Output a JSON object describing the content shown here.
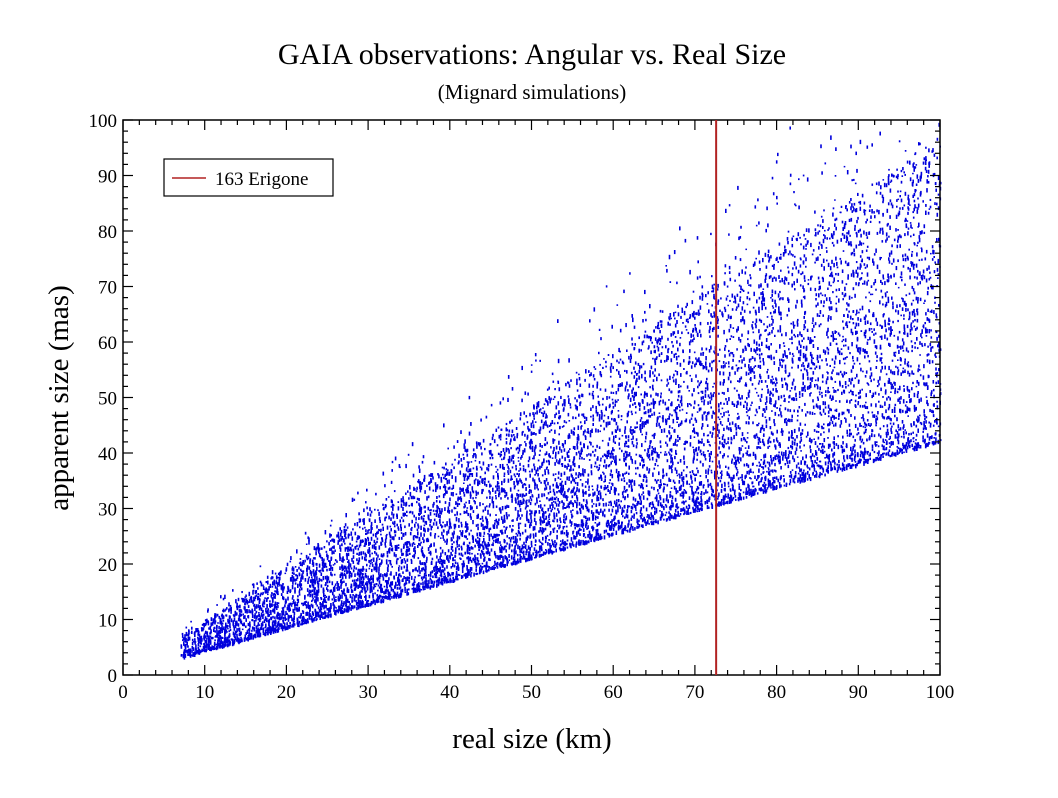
{
  "chart_data": {
    "type": "scatter",
    "title": "GAIA observations:  Angular vs. Real Size",
    "subtitle": "(Mignard simulations)",
    "xlabel": "real size   (km)",
    "ylabel": "apparent size  (mas)",
    "xlim": [
      0,
      100
    ],
    "ylim": [
      0,
      100
    ],
    "xticks": [
      0,
      10,
      20,
      30,
      40,
      50,
      60,
      70,
      80,
      90,
      100
    ],
    "yticks": [
      0,
      10,
      20,
      30,
      40,
      50,
      60,
      70,
      80,
      90,
      100
    ],
    "xtick_labels": [
      "0",
      "10",
      "20",
      "30",
      "40",
      "50",
      "60",
      "70",
      "80",
      "90",
      "100"
    ],
    "ytick_labels": [
      "0",
      "10",
      "20",
      "30",
      "40",
      "50",
      "60",
      "70",
      "80",
      "90",
      "100"
    ],
    "minor_ticks_per_major": 5,
    "grid": false,
    "legend_position": "top-left",
    "scatter_color": "#0000dd",
    "reference_line": {
      "label": "163 Erigone",
      "x": 72.6,
      "color": "#b22222"
    },
    "points_model": {
      "x_range": [
        7,
        100
      ],
      "y_lower_bound": "0.42 * x",
      "y_typical": "0.52 * x",
      "y_upper_extent": "0.95 * x",
      "count": 9000
    }
  }
}
